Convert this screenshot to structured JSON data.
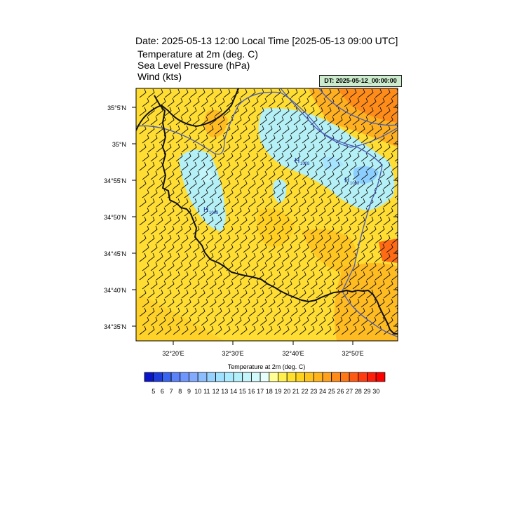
{
  "header": {
    "title": "Date: 2025-05-13  12:00 Local Time [2025-05-13  09:00 UTC]",
    "field1": "Temperature at 2m   (deg. C)",
    "field2": "Sea Level Pressure   (hPa)",
    "field3": "Wind   (kts)",
    "dt_label": "DT: 2025-05-12_00:00:00"
  },
  "map": {
    "lat_labels": [
      "35°5'N",
      "35°N",
      "34°55'N",
      "34°50'N",
      "34°45'N",
      "34°40'N",
      "34°35'N"
    ],
    "lon_labels": [
      "32°20'E",
      "32°30'E",
      "32°40'E",
      "32°50'E"
    ],
    "pressure_centers": [
      {
        "label": "H",
        "value": "1008"
      },
      {
        "label": "H",
        "value": "1008"
      },
      {
        "label": "H",
        "value": "1008"
      }
    ],
    "colors": {
      "land_warm": "#ffdd33",
      "orange": "#ffaa22",
      "red": "#ff5a14",
      "cool": "#b4f0f5",
      "pressure_line": "#4a5bb5",
      "coast": "#111111"
    }
  },
  "colorbar": {
    "title": "Temperature at 2m  (deg. C)",
    "labels": [
      "5",
      "6",
      "7",
      "8",
      "9",
      "10",
      "11",
      "12",
      "13",
      "14",
      "15",
      "16",
      "17",
      "18",
      "19",
      "20",
      "21",
      "22",
      "23",
      "24",
      "25",
      "26",
      "27",
      "28",
      "29",
      "30"
    ],
    "colors": [
      "#0a14c8",
      "#1e3cdc",
      "#3764f0",
      "#5a82fa",
      "#6e96ff",
      "#82aaff",
      "#8cbeff",
      "#96d2ff",
      "#a0e1ff",
      "#aaebff",
      "#b4f0fa",
      "#c3f5fa",
      "#d2fafa",
      "#e6fffa",
      "#ffff96",
      "#fff050",
      "#ffe12d",
      "#ffd21e",
      "#ffc31e",
      "#ffb41e",
      "#ffa01e",
      "#ff8c19",
      "#ff7814",
      "#ff5a14",
      "#ff3c0f",
      "#ff1e0a",
      "#ff0000"
    ]
  }
}
